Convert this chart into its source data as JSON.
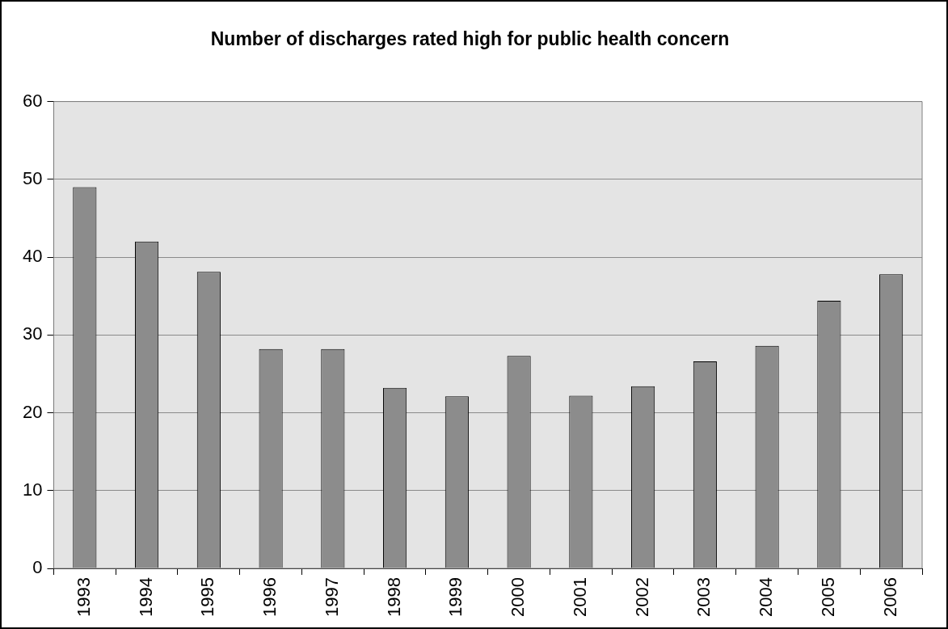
{
  "chart_data": {
    "type": "bar",
    "title": "Number of discharges rated high for public health concern",
    "categories": [
      "1993",
      "1994",
      "1995",
      "1996",
      "1997",
      "1998",
      "1999",
      "2000",
      "2001",
      "2002",
      "2003",
      "2004",
      "2005",
      "2006"
    ],
    "values": [
      49,
      42,
      38.1,
      28.2,
      28.2,
      23.2,
      22.1,
      27.3,
      22.2,
      23.4,
      26.6,
      28.6,
      34.4,
      37.8
    ],
    "color": "#8c8c8c",
    "ylim": [
      0,
      60
    ],
    "yticks": [
      0,
      10,
      20,
      30,
      40,
      50,
      60
    ],
    "grid": "y",
    "legend": false
  }
}
